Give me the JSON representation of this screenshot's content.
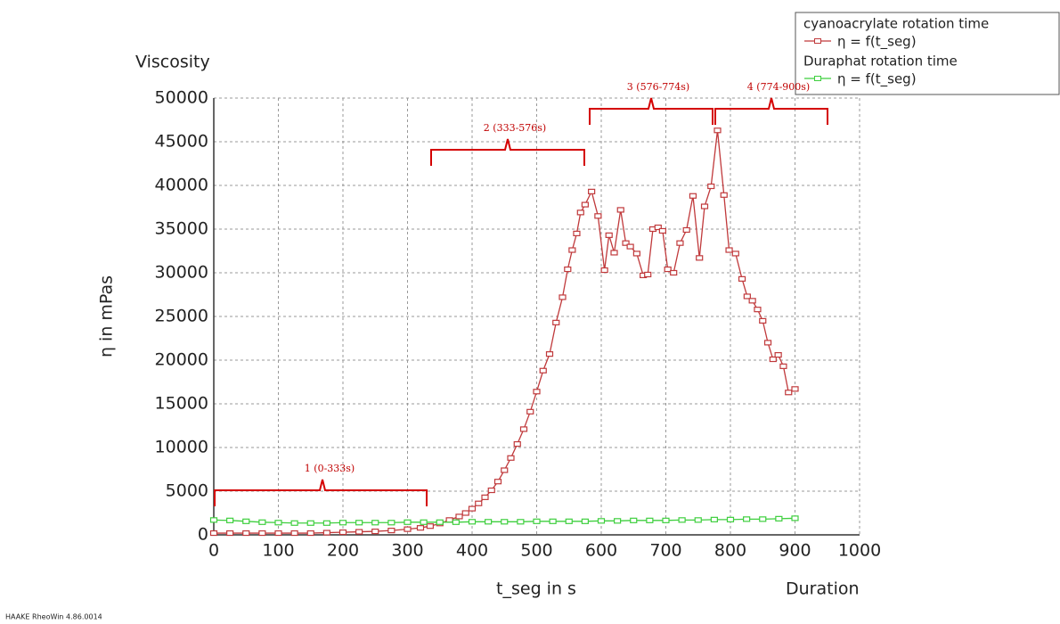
{
  "chart_data": {
    "type": "line",
    "header_label": "Viscosity",
    "footer_right_label": "Duration",
    "software_label": "HAAKE RheoWin 4.86.0014",
    "x_label": "t_seg in s",
    "y_label": "η in mPas",
    "xlim": [
      0,
      1000
    ],
    "ylim": [
      0,
      50000
    ],
    "xticks": [
      0,
      100,
      200,
      300,
      400,
      500,
      600,
      700,
      800,
      900,
      1000
    ],
    "yticks": [
      0,
      5000,
      10000,
      15000,
      20000,
      25000,
      30000,
      35000,
      40000,
      45000,
      50000
    ],
    "grid": true,
    "legend_position": "top-right",
    "series": [
      {
        "group": "cyanoacrylate rotation time",
        "name": "η = f(t_seg)",
        "color": "#c0393b",
        "x": [
          0,
          25,
          50,
          75,
          100,
          125,
          150,
          175,
          200,
          225,
          250,
          275,
          300,
          320,
          335,
          350,
          365,
          380,
          390,
          400,
          410,
          420,
          430,
          440,
          450,
          460,
          470,
          480,
          490,
          500,
          510,
          520,
          530,
          540,
          548,
          555,
          562,
          568,
          575,
          585,
          595,
          605,
          612,
          620,
          630,
          638,
          645,
          655,
          665,
          672,
          680,
          688,
          695,
          703,
          712,
          722,
          732,
          742,
          752,
          760,
          770,
          780,
          790,
          798,
          808,
          818,
          826,
          834,
          842,
          850,
          858,
          866,
          874,
          882,
          890,
          900
        ],
        "values": [
          200,
          200,
          200,
          200,
          200,
          200,
          200,
          250,
          300,
          350,
          400,
          500,
          650,
          800,
          1000,
          1300,
          1700,
          2100,
          2500,
          3000,
          3600,
          4300,
          5100,
          6100,
          7400,
          8800,
          10400,
          12100,
          14100,
          16400,
          18800,
          20700,
          24300,
          27200,
          30400,
          32600,
          34500,
          36900,
          37800,
          39300,
          36500,
          30300,
          34300,
          32300,
          37200,
          33400,
          33000,
          32200,
          29700,
          29800,
          35000,
          35200,
          34800,
          30400,
          30000,
          33400,
          34900,
          38800,
          31700,
          37600,
          39900,
          46300,
          38900,
          32600,
          32200,
          29300,
          27300,
          26800,
          25800,
          24500,
          22000,
          20100,
          20600,
          19300,
          16300,
          16700
        ]
      },
      {
        "group": "Duraphat rotation time",
        "name": "η = f(t_seg)",
        "color": "#3ecf3e",
        "x": [
          0,
          25,
          50,
          75,
          100,
          125,
          150,
          175,
          200,
          225,
          250,
          275,
          300,
          325,
          350,
          375,
          400,
          425,
          450,
          475,
          500,
          525,
          550,
          575,
          600,
          625,
          650,
          675,
          700,
          725,
          750,
          775,
          800,
          825,
          850,
          875,
          900
        ],
        "values": [
          1700,
          1650,
          1550,
          1450,
          1400,
          1350,
          1350,
          1350,
          1400,
          1400,
          1400,
          1400,
          1450,
          1450,
          1450,
          1450,
          1500,
          1500,
          1500,
          1500,
          1550,
          1550,
          1550,
          1550,
          1600,
          1600,
          1650,
          1650,
          1650,
          1700,
          1700,
          1750,
          1750,
          1800,
          1800,
          1850,
          1900
        ]
      }
    ],
    "annotations": [
      {
        "text": "1 (0-333s)"
      },
      {
        "text": "2 (333-576s)"
      },
      {
        "text": "3 (576-774s)"
      },
      {
        "text": "4 (774-900s)"
      }
    ]
  }
}
